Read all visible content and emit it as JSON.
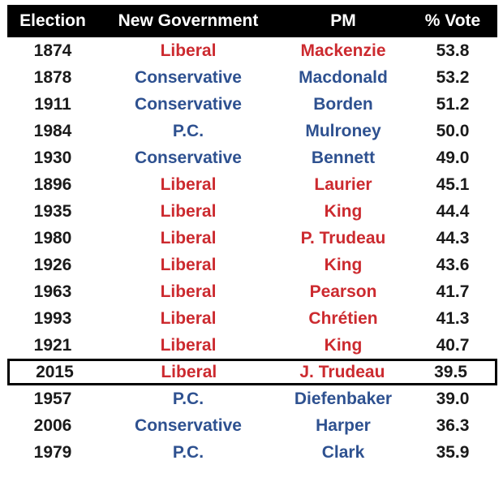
{
  "colors": {
    "liberal": "#cc2a2f",
    "conservative": "#2e5190",
    "header_bg": "#000000",
    "header_text": "#ffffff",
    "highlight_border": "#000000"
  },
  "table": {
    "headers": [
      "Election",
      "New Government",
      "PM",
      "% Vote"
    ],
    "rows": [
      {
        "year": "1874",
        "government": "Liberal",
        "pm": "Mackenzie",
        "vote": "53.8",
        "party": "liberal",
        "highlight": false
      },
      {
        "year": "1878",
        "government": "Conservative",
        "pm": "Macdonald",
        "vote": "53.2",
        "party": "conservative",
        "highlight": false
      },
      {
        "year": "1911",
        "government": "Conservative",
        "pm": "Borden",
        "vote": "51.2",
        "party": "conservative",
        "highlight": false
      },
      {
        "year": "1984",
        "government": "P.C.",
        "pm": "Mulroney",
        "vote": "50.0",
        "party": "conservative",
        "highlight": false
      },
      {
        "year": "1930",
        "government": "Conservative",
        "pm": "Bennett",
        "vote": "49.0",
        "party": "conservative",
        "highlight": false
      },
      {
        "year": "1896",
        "government": "Liberal",
        "pm": "Laurier",
        "vote": "45.1",
        "party": "liberal",
        "highlight": false
      },
      {
        "year": "1935",
        "government": "Liberal",
        "pm": "King",
        "vote": "44.4",
        "party": "liberal",
        "highlight": false
      },
      {
        "year": "1980",
        "government": "Liberal",
        "pm": "P. Trudeau",
        "vote": "44.3",
        "party": "liberal",
        "highlight": false
      },
      {
        "year": "1926",
        "government": "Liberal",
        "pm": "King",
        "vote": "43.6",
        "party": "liberal",
        "highlight": false
      },
      {
        "year": "1963",
        "government": "Liberal",
        "pm": "Pearson",
        "vote": "41.7",
        "party": "liberal",
        "highlight": false
      },
      {
        "year": "1993",
        "government": "Liberal",
        "pm": "Chrétien",
        "vote": "41.3",
        "party": "liberal",
        "highlight": false
      },
      {
        "year": "1921",
        "government": "Liberal",
        "pm": "King",
        "vote": "40.7",
        "party": "liberal",
        "highlight": false
      },
      {
        "year": "2015",
        "government": "Liberal",
        "pm": "J. Trudeau",
        "vote": "39.5",
        "party": "liberal",
        "highlight": true
      },
      {
        "year": "1957",
        "government": "P.C.",
        "pm": "Diefenbaker",
        "vote": "39.0",
        "party": "conservative",
        "highlight": false
      },
      {
        "year": "2006",
        "government": "Conservative",
        "pm": "Harper",
        "vote": "36.3",
        "party": "conservative",
        "highlight": false
      },
      {
        "year": "1979",
        "government": "P.C.",
        "pm": "Clark",
        "vote": "35.9",
        "party": "conservative",
        "highlight": false
      }
    ]
  }
}
